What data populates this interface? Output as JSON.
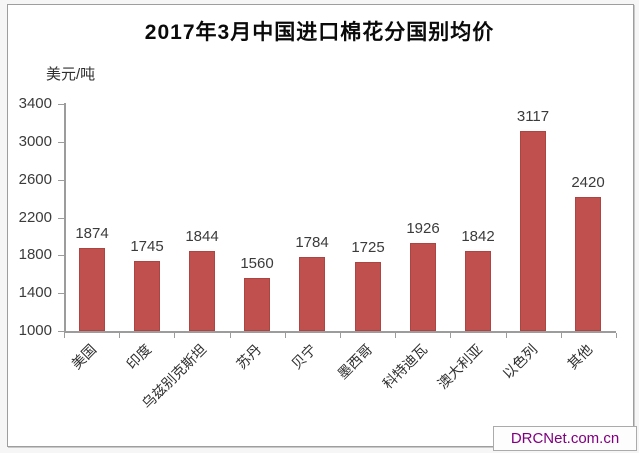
{
  "title": "2017年3月中国进口棉花分国别均价",
  "y_axis_unit": "美元/吨",
  "watermark": "DRCNet.com.cn",
  "colors": {
    "bar": "#c0504d",
    "axis": "#9c9c9c",
    "tick_label_text": "#3b3b3b",
    "title_text": "#0a0a0a",
    "watermark_text": "#800080",
    "plot_background": "#ffffff"
  },
  "chart_data": {
    "type": "bar",
    "title": "2017年3月中国进口棉花分国别均价",
    "xlabel": "",
    "ylabel": "美元/吨",
    "categories": [
      "美国",
      "印度",
      "乌兹别克斯坦",
      "苏丹",
      "贝宁",
      "墨西哥",
      "科特迪瓦",
      "澳大利亚",
      "以色列",
      "其他"
    ],
    "values": [
      1874,
      1745,
      1844,
      1560,
      1784,
      1725,
      1926,
      1842,
      3117,
      2420
    ],
    "ylim": [
      1000,
      3400
    ],
    "ytick_interval": 400,
    "yticks": [
      1000,
      1400,
      1800,
      2200,
      2600,
      3000,
      3400
    ],
    "grid": false,
    "legend": "none",
    "data_labels": true,
    "x_label_rotation_deg": 45,
    "bar_color": "#c0504d"
  }
}
